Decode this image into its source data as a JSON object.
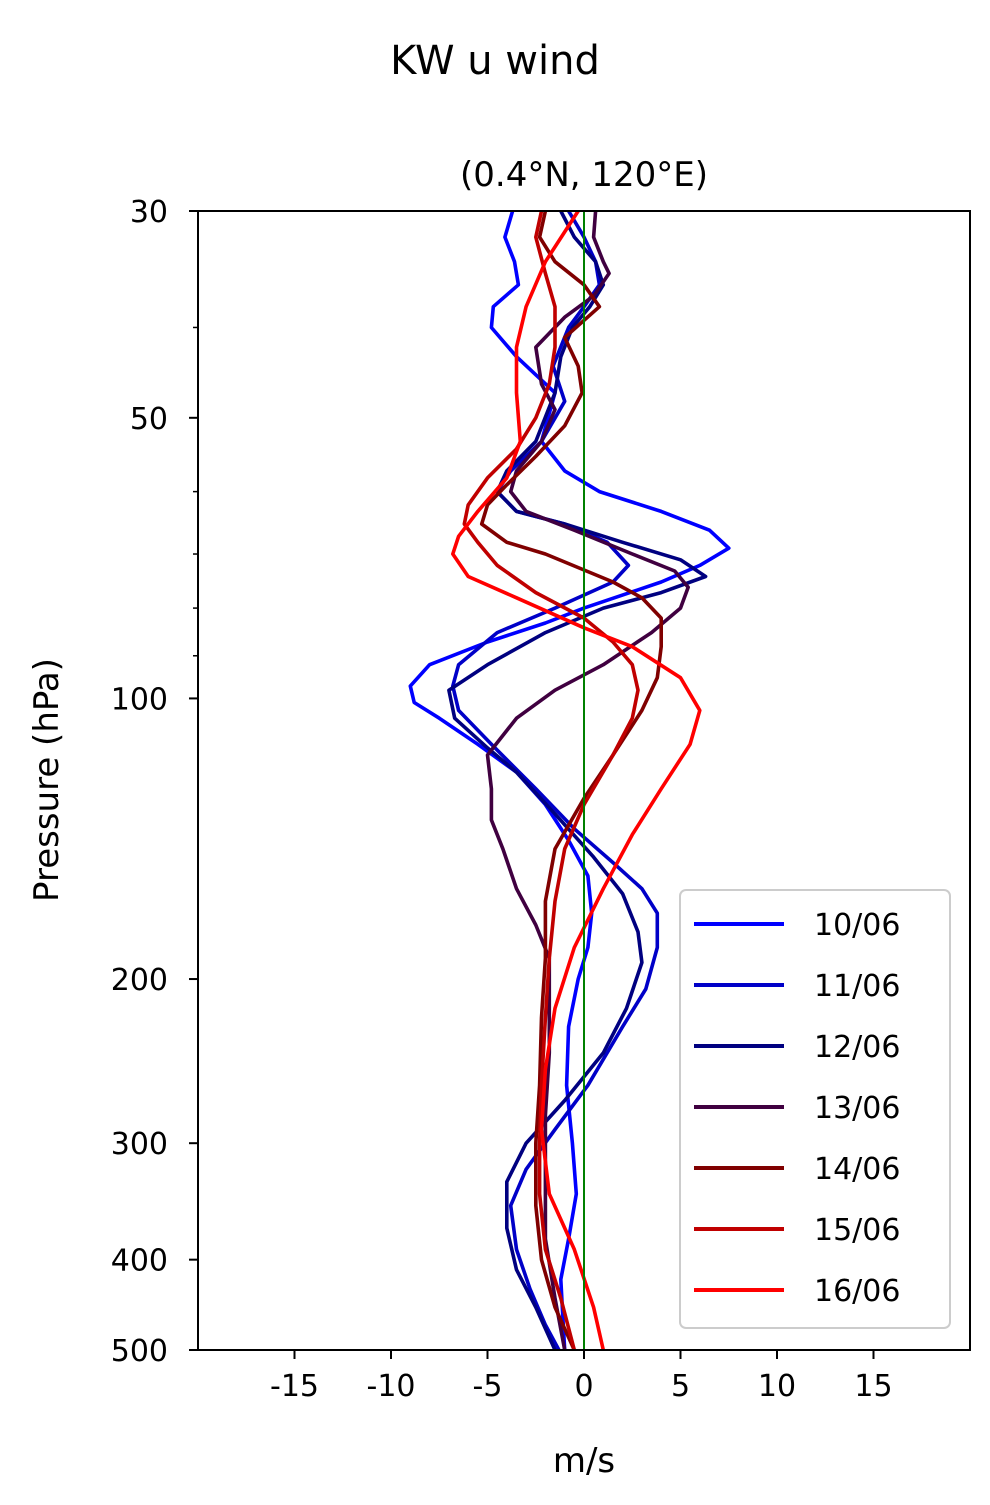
{
  "suptitle": "KW u wind",
  "chart_data": {
    "type": "line",
    "title": "(0.4°N, 120°E)",
    "xlabel": "m/s",
    "ylabel": "Pressure (hPa)",
    "xlim": [
      -20,
      20
    ],
    "ylim": [
      500,
      30
    ],
    "yscale": "log",
    "x_ticks": [
      "-15",
      "-10",
      "-5",
      "0",
      "5",
      "10",
      "15"
    ],
    "x_tick_values": [
      -15,
      -10,
      -5,
      0,
      5,
      10,
      15
    ],
    "y_ticks": [
      "30",
      "50",
      "100",
      "200",
      "300",
      "400",
      "500"
    ],
    "y_tick_values": [
      30,
      50,
      100,
      200,
      300,
      400,
      500
    ],
    "y_minor_ticks": [
      40,
      60,
      70,
      80,
      90
    ],
    "grid": false,
    "legend_position": "lower-right",
    "reference_line": {
      "x": 0,
      "color": "#008000"
    },
    "series": [
      {
        "name": "10/06",
        "color": "#0000ff",
        "points": [
          [
            -3.7,
            30
          ],
          [
            -4.1,
            32
          ],
          [
            -3.6,
            34
          ],
          [
            -3.4,
            36
          ],
          [
            -4.7,
            38
          ],
          [
            -4.8,
            40
          ],
          [
            -3.5,
            43
          ],
          [
            -1.5,
            47
          ],
          [
            -2.2,
            53
          ],
          [
            -1.0,
            57
          ],
          [
            0.8,
            60
          ],
          [
            4.0,
            63
          ],
          [
            6.5,
            66
          ],
          [
            7.5,
            69
          ],
          [
            6.0,
            72
          ],
          [
            4.0,
            75
          ],
          [
            0.0,
            80
          ],
          [
            -2.0,
            83
          ],
          [
            -5.0,
            87
          ],
          [
            -8.0,
            92
          ],
          [
            -9.0,
            97
          ],
          [
            -8.8,
            101
          ],
          [
            -7.5,
            105
          ],
          [
            -5.5,
            112
          ],
          [
            -3.5,
            120
          ],
          [
            -2.0,
            130
          ],
          [
            -0.8,
            142
          ],
          [
            0.2,
            155
          ],
          [
            0.4,
            170
          ],
          [
            0.2,
            185
          ],
          [
            -0.3,
            200
          ],
          [
            -0.8,
            225
          ],
          [
            -0.9,
            260
          ],
          [
            -0.6,
            300
          ],
          [
            -0.4,
            340
          ],
          [
            -0.8,
            380
          ],
          [
            -1.2,
            420
          ],
          [
            -1.1,
            460
          ],
          [
            -1.0,
            500
          ]
        ]
      },
      {
        "name": "11/06",
        "color": "#0000c8",
        "points": [
          [
            -0.8,
            30
          ],
          [
            0.0,
            32
          ],
          [
            0.6,
            34
          ],
          [
            0.8,
            36
          ],
          [
            0.0,
            38
          ],
          [
            -0.8,
            40
          ],
          [
            -1.6,
            44
          ],
          [
            -1.0,
            48
          ],
          [
            -2.2,
            53
          ],
          [
            -3.8,
            57
          ],
          [
            -4.5,
            60
          ],
          [
            -3.5,
            63
          ],
          [
            -1.0,
            65
          ],
          [
            1.2,
            68
          ],
          [
            2.3,
            72
          ],
          [
            1.5,
            75
          ],
          [
            -1.5,
            80
          ],
          [
            -4.5,
            85
          ],
          [
            -6.5,
            92
          ],
          [
            -6.8,
            97
          ],
          [
            -6.5,
            103
          ],
          [
            -4.8,
            112
          ],
          [
            -2.5,
            125
          ],
          [
            -0.5,
            138
          ],
          [
            1.5,
            150
          ],
          [
            3.0,
            160
          ],
          [
            3.8,
            170
          ],
          [
            3.8,
            185
          ],
          [
            3.2,
            205
          ],
          [
            2.0,
            225
          ],
          [
            0.2,
            260
          ],
          [
            -1.5,
            290
          ],
          [
            -3.0,
            320
          ],
          [
            -3.8,
            350
          ],
          [
            -3.5,
            390
          ],
          [
            -2.8,
            430
          ],
          [
            -2.0,
            470
          ],
          [
            -1.3,
            500
          ]
        ]
      },
      {
        "name": "12/06",
        "color": "#000080",
        "points": [
          [
            -1.2,
            30
          ],
          [
            -0.5,
            32
          ],
          [
            0.6,
            34
          ],
          [
            1.0,
            36
          ],
          [
            0.3,
            38
          ],
          [
            -0.6,
            40
          ],
          [
            -1.2,
            43
          ],
          [
            -1.5,
            47
          ],
          [
            -2.5,
            53
          ],
          [
            -4.0,
            57
          ],
          [
            -4.5,
            60
          ],
          [
            -3.5,
            63
          ],
          [
            -1.0,
            65
          ],
          [
            2.0,
            68
          ],
          [
            5.0,
            71
          ],
          [
            6.3,
            74
          ],
          [
            4.0,
            77
          ],
          [
            1.0,
            80
          ],
          [
            -2.0,
            85
          ],
          [
            -5.0,
            92
          ],
          [
            -7.0,
            98
          ],
          [
            -6.7,
            105
          ],
          [
            -5.0,
            113
          ],
          [
            -3.5,
            120
          ],
          [
            -1.5,
            133
          ],
          [
            0.5,
            148
          ],
          [
            2.0,
            162
          ],
          [
            2.8,
            178
          ],
          [
            3.0,
            192
          ],
          [
            2.2,
            215
          ],
          [
            1.0,
            240
          ],
          [
            -1.0,
            270
          ],
          [
            -3.0,
            300
          ],
          [
            -4.0,
            330
          ],
          [
            -4.0,
            370
          ],
          [
            -3.5,
            410
          ],
          [
            -2.5,
            450
          ],
          [
            -1.5,
            500
          ]
        ]
      },
      {
        "name": "13/06",
        "color": "#400040",
        "points": [
          [
            0.6,
            30
          ],
          [
            0.5,
            32
          ],
          [
            1.0,
            34
          ],
          [
            1.3,
            35
          ],
          [
            0.5,
            37
          ],
          [
            -1.0,
            39
          ],
          [
            -2.5,
            42
          ],
          [
            -2.2,
            46
          ],
          [
            -1.5,
            49
          ],
          [
            -2.2,
            53
          ],
          [
            -3.5,
            57
          ],
          [
            -3.8,
            60
          ],
          [
            -3.0,
            63
          ],
          [
            -0.5,
            66
          ],
          [
            2.5,
            70
          ],
          [
            4.7,
            73
          ],
          [
            5.4,
            76
          ],
          [
            5.0,
            80
          ],
          [
            3.5,
            85
          ],
          [
            1.0,
            92
          ],
          [
            -1.5,
            98
          ],
          [
            -3.5,
            105
          ],
          [
            -5.0,
            115
          ],
          [
            -4.8,
            125
          ],
          [
            -4.8,
            135
          ],
          [
            -4.2,
            145
          ],
          [
            -3.5,
            160
          ],
          [
            -2.5,
            175
          ],
          [
            -1.8,
            190
          ],
          [
            -1.8,
            210
          ],
          [
            -1.8,
            240
          ],
          [
            -2.0,
            280
          ],
          [
            -2.0,
            330
          ],
          [
            -2.0,
            380
          ],
          [
            -1.5,
            440
          ],
          [
            -1.0,
            500
          ]
        ]
      },
      {
        "name": "14/06",
        "color": "#800000",
        "points": [
          [
            -2.0,
            30
          ],
          [
            -2.3,
            32
          ],
          [
            -1.5,
            34
          ],
          [
            0.0,
            36
          ],
          [
            0.8,
            38
          ],
          [
            -1.0,
            41
          ],
          [
            -0.3,
            44
          ],
          [
            -0.1,
            47
          ],
          [
            -1.0,
            51
          ],
          [
            -2.5,
            55
          ],
          [
            -4.0,
            59
          ],
          [
            -5.0,
            62
          ],
          [
            -5.3,
            65
          ],
          [
            -4.0,
            68
          ],
          [
            -2.0,
            70
          ],
          [
            1.5,
            75
          ],
          [
            3.0,
            78
          ],
          [
            4.0,
            82
          ],
          [
            4.0,
            88
          ],
          [
            3.8,
            95
          ],
          [
            3.0,
            103
          ],
          [
            1.5,
            115
          ],
          [
            0.0,
            128
          ],
          [
            -1.5,
            145
          ],
          [
            -2.0,
            165
          ],
          [
            -2.0,
            190
          ],
          [
            -2.2,
            220
          ],
          [
            -2.3,
            260
          ],
          [
            -2.5,
            300
          ],
          [
            -2.5,
            350
          ],
          [
            -2.2,
            400
          ],
          [
            -1.5,
            450
          ],
          [
            -0.5,
            500
          ]
        ]
      },
      {
        "name": "15/06",
        "color": "#c00000",
        "points": [
          [
            -2.2,
            30
          ],
          [
            -2.5,
            32
          ],
          [
            -2.0,
            35
          ],
          [
            -1.5,
            38
          ],
          [
            -1.5,
            42
          ],
          [
            -1.8,
            46
          ],
          [
            -2.5,
            50
          ],
          [
            -3.5,
            54
          ],
          [
            -5.0,
            58
          ],
          [
            -6.0,
            62
          ],
          [
            -6.2,
            65
          ],
          [
            -5.5,
            68
          ],
          [
            -4.5,
            72
          ],
          [
            -2.5,
            77
          ],
          [
            0.0,
            82
          ],
          [
            1.5,
            87
          ],
          [
            2.5,
            92
          ],
          [
            2.8,
            98
          ],
          [
            2.5,
            105
          ],
          [
            1.5,
            115
          ],
          [
            0.0,
            130
          ],
          [
            -1.0,
            145
          ],
          [
            -1.5,
            165
          ],
          [
            -1.8,
            190
          ],
          [
            -2.0,
            220
          ],
          [
            -2.2,
            260
          ],
          [
            -2.3,
            300
          ],
          [
            -2.3,
            340
          ],
          [
            -2.0,
            390
          ],
          [
            -1.2,
            440
          ],
          [
            -0.5,
            500
          ]
        ]
      },
      {
        "name": "16/06",
        "color": "#ff0000",
        "points": [
          [
            -0.3,
            30
          ],
          [
            -2.0,
            34
          ],
          [
            -3.0,
            38
          ],
          [
            -3.5,
            42
          ],
          [
            -3.5,
            47
          ],
          [
            -3.3,
            53
          ],
          [
            -4.0,
            58
          ],
          [
            -5.5,
            63
          ],
          [
            -6.5,
            67
          ],
          [
            -6.8,
            70
          ],
          [
            -6.0,
            74
          ],
          [
            -3.5,
            78
          ],
          [
            0.0,
            84
          ],
          [
            2.5,
            88
          ],
          [
            5.0,
            95
          ],
          [
            6.0,
            103
          ],
          [
            5.5,
            112
          ],
          [
            4.0,
            125
          ],
          [
            2.5,
            140
          ],
          [
            1.0,
            160
          ],
          [
            -0.5,
            185
          ],
          [
            -1.5,
            215
          ],
          [
            -2.0,
            250
          ],
          [
            -2.2,
            290
          ],
          [
            -1.8,
            340
          ],
          [
            -0.5,
            390
          ],
          [
            0.5,
            450
          ],
          [
            1.0,
            500
          ]
        ]
      }
    ]
  }
}
